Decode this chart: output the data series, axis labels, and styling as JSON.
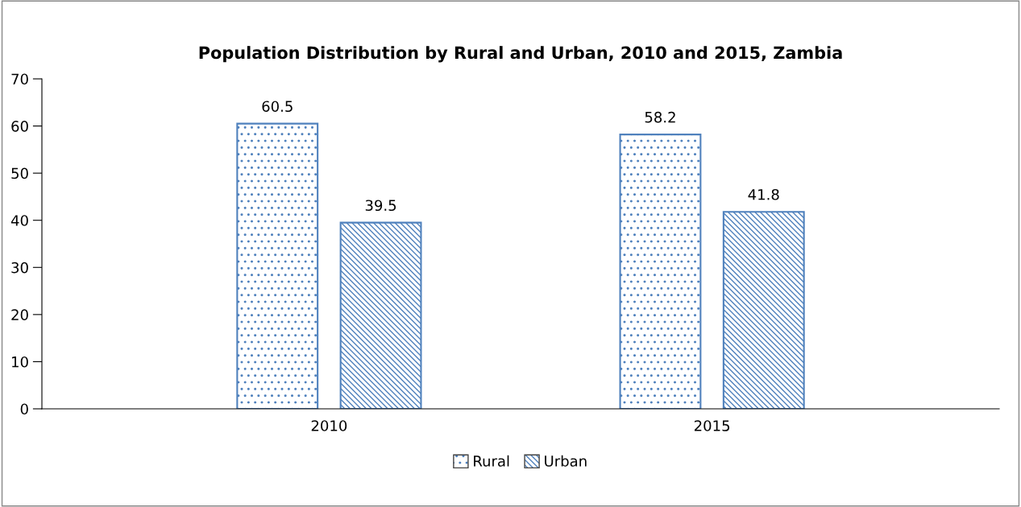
{
  "chart_data": {
    "type": "bar",
    "title": "Population Distribution by Rural and Urban, 2010 and 2015, Zambia",
    "categories": [
      "2010",
      "2015"
    ],
    "series": [
      {
        "name": "Rural",
        "color": "#4f81bd",
        "values": [
          60.5,
          58.2
        ]
      },
      {
        "name": "Urban",
        "color": "#4f81bd",
        "values": [
          39.5,
          41.8
        ]
      }
    ],
    "ylim": [
      0,
      70
    ],
    "yticks": [
      0,
      10,
      20,
      30,
      40,
      50,
      60,
      70
    ],
    "grid": false,
    "legend": "bottom",
    "data_labels": true
  }
}
